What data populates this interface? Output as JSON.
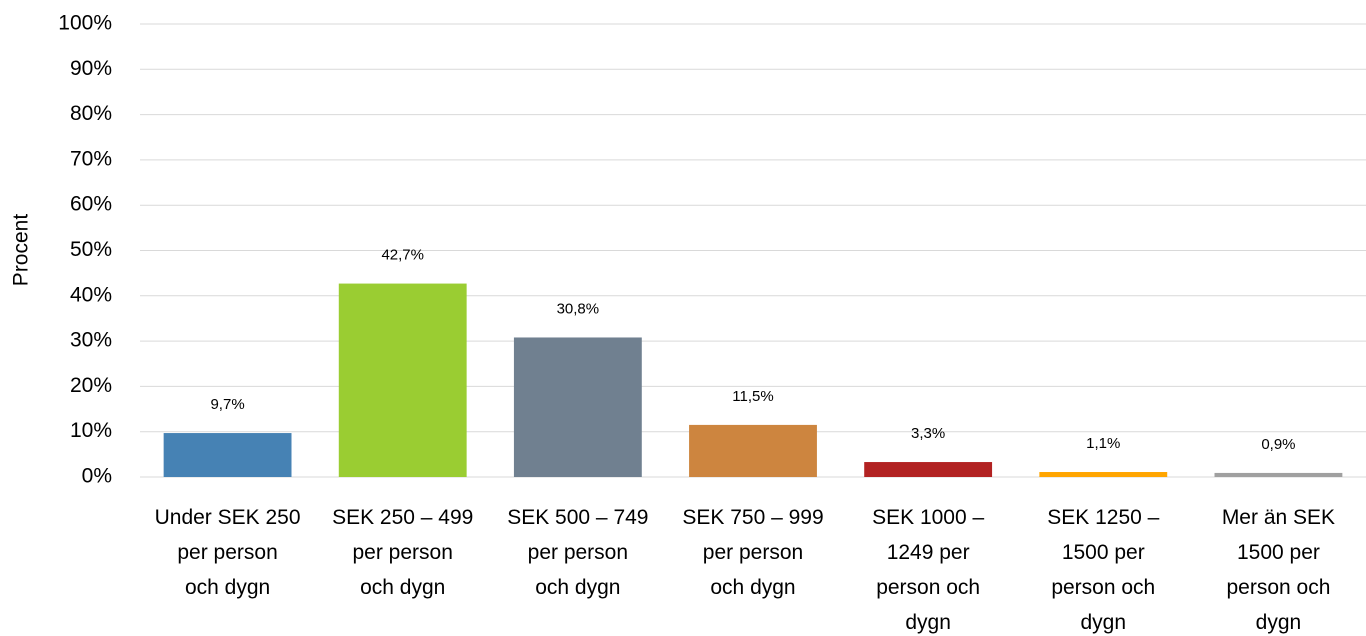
{
  "chart_data": {
    "type": "bar",
    "y_label": "Procent",
    "categories": [
      [
        "Under SEK 250",
        "per person",
        "och dygn"
      ],
      [
        "SEK 250 – 499",
        "per person",
        "och dygn"
      ],
      [
        "SEK 500 – 749",
        "per person",
        "och dygn"
      ],
      [
        "SEK 750 – 999",
        "per person",
        "och dygn"
      ],
      [
        "SEK 1000 –",
        "1249 per",
        "person och",
        "dygn"
      ],
      [
        "SEK 1250 –",
        "1500 per",
        "person och",
        "dygn"
      ],
      [
        "Mer än SEK",
        "1500 per",
        "person och",
        "dygn"
      ]
    ],
    "values": [
      9.7,
      42.7,
      30.8,
      11.5,
      3.3,
      1.1,
      0.9
    ],
    "value_labels": [
      "9,7%",
      "42,7%",
      "30,8%",
      "11,5%",
      "3,3%",
      "1,1%",
      "0,9%"
    ],
    "colors": [
      "#4682b4",
      "#9acd32",
      "#708090",
      "#cd853f",
      "#b22222",
      "#ffa500",
      "#a0a0a0"
    ],
    "ylim": [
      0,
      100
    ],
    "yticks": [
      {
        "value": 0,
        "label": "0%"
      },
      {
        "value": 10,
        "label": "10%"
      },
      {
        "value": 20,
        "label": "20%"
      },
      {
        "value": 30,
        "label": "30%"
      },
      {
        "value": 40,
        "label": "40%"
      },
      {
        "value": 50,
        "label": "50%"
      },
      {
        "value": 60,
        "label": "60%"
      },
      {
        "value": 70,
        "label": "70%"
      },
      {
        "value": 80,
        "label": "80%"
      },
      {
        "value": 90,
        "label": "90%"
      },
      {
        "value": 100,
        "label": "100%"
      }
    ],
    "grid": true
  }
}
